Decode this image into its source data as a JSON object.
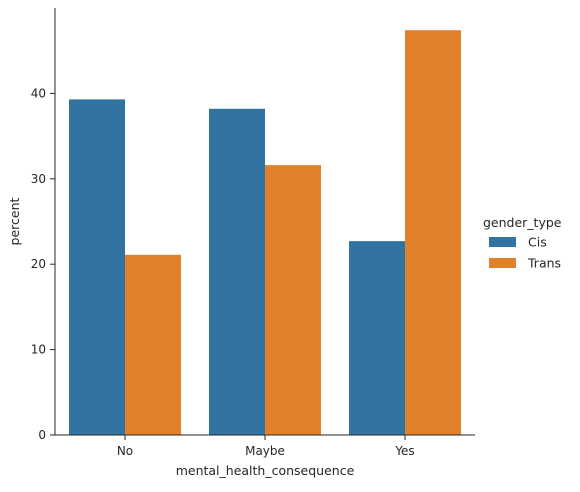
{
  "chart_data": {
    "type": "bar",
    "title": "",
    "xlabel": "mental_health_consequence",
    "ylabel": "percent",
    "categories": [
      "No",
      "Maybe",
      "Yes"
    ],
    "series": [
      {
        "name": "Cis",
        "values": [
          39.3,
          38.2,
          22.7
        ],
        "color": "#3274a1"
      },
      {
        "name": "Trans",
        "values": [
          21.1,
          31.6,
          47.4
        ],
        "color": "#e1812c"
      }
    ],
    "ylim": [
      0,
      50
    ],
    "yticks": [
      0,
      10,
      20,
      30,
      40
    ],
    "grid": false,
    "legend": {
      "title": "gender_type",
      "placement": "right"
    }
  }
}
